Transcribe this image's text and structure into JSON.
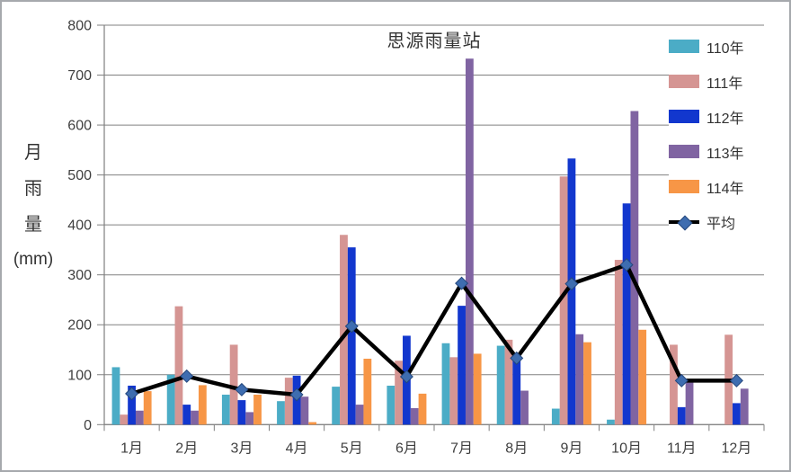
{
  "title": "思源雨量站",
  "y_axis": {
    "label_lines": [
      "月",
      "雨",
      "量",
      "(mm)"
    ]
  },
  "colors": {
    "grid": "#808080",
    "axis": "#7f7f7f",
    "text": "#3f3f3f",
    "border": "#a6a9ad",
    "marker_fill": "#3e6db0",
    "marker_edge": "#24477c",
    "line": "#000000"
  },
  "chart_data": {
    "type": "bar",
    "title": "思源雨量站",
    "categories": [
      "1月",
      "2月",
      "3月",
      "4月",
      "5月",
      "6月",
      "7月",
      "8月",
      "9月",
      "10月",
      "11月",
      "12月"
    ],
    "series": [
      {
        "name": "110年",
        "type": "bar",
        "color": "#4bacc6",
        "values": [
          115,
          100,
          60,
          47,
          76,
          78,
          163,
          158,
          32,
          10,
          null,
          null
        ]
      },
      {
        "name": "111年",
        "type": "bar",
        "color": "#d59593",
        "values": [
          20,
          237,
          160,
          94,
          380,
          128,
          135,
          170,
          497,
          330,
          160,
          180
        ]
      },
      {
        "name": "112年",
        "type": "bar",
        "color": "#1237ce",
        "values": [
          78,
          40,
          49,
          98,
          355,
          178,
          238,
          133,
          533,
          443,
          35,
          43
        ]
      },
      {
        "name": "113年",
        "type": "bar",
        "color": "#8064a2",
        "values": [
          28,
          28,
          25,
          56,
          40,
          33,
          733,
          68,
          181,
          628,
          85,
          72
        ]
      },
      {
        "name": "114年",
        "type": "bar",
        "color": "#f79646",
        "values": [
          67,
          79,
          60,
          5,
          132,
          62,
          142,
          null,
          165,
          190,
          null,
          null
        ]
      },
      {
        "name": "平均",
        "type": "line",
        "color": "#000000",
        "marker": "diamond",
        "marker_color": "#3e6db0",
        "values": [
          62,
          97,
          70,
          60,
          197,
          96,
          283,
          133,
          282,
          320,
          88,
          88
        ]
      }
    ],
    "xlabel": "",
    "ylabel": "月雨量(mm)",
    "ylim": [
      0,
      800
    ],
    "ytick_step": 100,
    "grid": true,
    "legend_position": "right"
  }
}
